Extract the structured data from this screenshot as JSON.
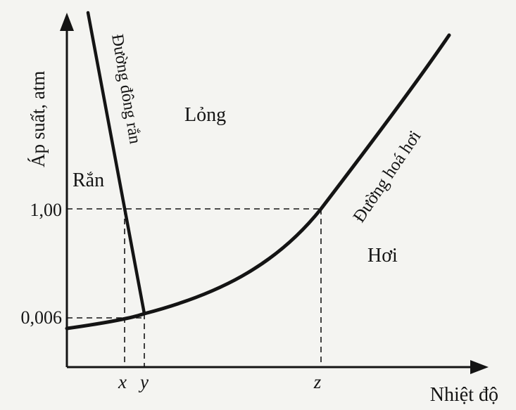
{
  "diagram": {
    "y_axis_label": "Áp suất, atm",
    "x_axis_label": "Nhiệt độ",
    "y_ticks": [
      "1,00",
      "0,006"
    ],
    "x_ticks": [
      "x",
      "y",
      "z"
    ],
    "regions": {
      "solid": "Rắn",
      "liquid": "Lỏng",
      "gas": "Hơi"
    },
    "curves": {
      "melting": "Đường đông rắn",
      "vaporization": "Đường hoá hơi"
    },
    "colors": {
      "ink": "#141414",
      "background": "#f4f4f1"
    }
  }
}
